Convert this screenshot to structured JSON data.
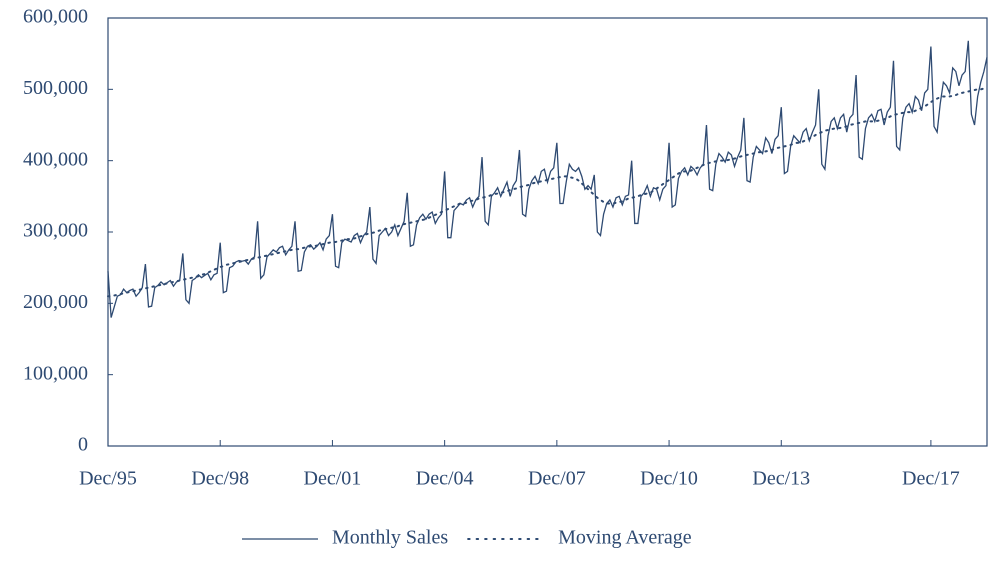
{
  "chart_data": {
    "type": "line",
    "x": [
      "1995-12",
      "1996-01",
      "1996-02",
      "1996-03",
      "1996-04",
      "1996-05",
      "1996-06",
      "1996-07",
      "1996-08",
      "1996-09",
      "1996-10",
      "1996-11",
      "1996-12",
      "1997-01",
      "1997-02",
      "1997-03",
      "1997-04",
      "1997-05",
      "1997-06",
      "1997-07",
      "1997-08",
      "1997-09",
      "1997-10",
      "1997-11",
      "1997-12",
      "1998-01",
      "1998-02",
      "1998-03",
      "1998-04",
      "1998-05",
      "1998-06",
      "1998-07",
      "1998-08",
      "1998-09",
      "1998-10",
      "1998-11",
      "1998-12",
      "1999-01",
      "1999-02",
      "1999-03",
      "1999-04",
      "1999-05",
      "1999-06",
      "1999-07",
      "1999-08",
      "1999-09",
      "1999-10",
      "1999-11",
      "1999-12",
      "2000-01",
      "2000-02",
      "2000-03",
      "2000-04",
      "2000-05",
      "2000-06",
      "2000-07",
      "2000-08",
      "2000-09",
      "2000-10",
      "2000-11",
      "2000-12",
      "2001-01",
      "2001-02",
      "2001-03",
      "2001-04",
      "2001-05",
      "2001-06",
      "2001-07",
      "2001-08",
      "2001-09",
      "2001-10",
      "2001-11",
      "2001-12",
      "2002-01",
      "2002-02",
      "2002-03",
      "2002-04",
      "2002-05",
      "2002-06",
      "2002-07",
      "2002-08",
      "2002-09",
      "2002-10",
      "2002-11",
      "2002-12",
      "2003-01",
      "2003-02",
      "2003-03",
      "2003-04",
      "2003-05",
      "2003-06",
      "2003-07",
      "2003-08",
      "2003-09",
      "2003-10",
      "2003-11",
      "2003-12",
      "2004-01",
      "2004-02",
      "2004-03",
      "2004-04",
      "2004-05",
      "2004-06",
      "2004-07",
      "2004-08",
      "2004-09",
      "2004-10",
      "2004-11",
      "2004-12",
      "2005-01",
      "2005-02",
      "2005-03",
      "2005-04",
      "2005-05",
      "2005-06",
      "2005-07",
      "2005-08",
      "2005-09",
      "2005-10",
      "2005-11",
      "2005-12",
      "2006-01",
      "2006-02",
      "2006-03",
      "2006-04",
      "2006-05",
      "2006-06",
      "2006-07",
      "2006-08",
      "2006-09",
      "2006-10",
      "2006-11",
      "2006-12",
      "2007-01",
      "2007-02",
      "2007-03",
      "2007-04",
      "2007-05",
      "2007-06",
      "2007-07",
      "2007-08",
      "2007-09",
      "2007-10",
      "2007-11",
      "2007-12",
      "2008-01",
      "2008-02",
      "2008-03",
      "2008-04",
      "2008-05",
      "2008-06",
      "2008-07",
      "2008-08",
      "2008-09",
      "2008-10",
      "2008-11",
      "2008-12",
      "2009-01",
      "2009-02",
      "2009-03",
      "2009-04",
      "2009-05",
      "2009-06",
      "2009-07",
      "2009-08",
      "2009-09",
      "2009-10",
      "2009-11",
      "2009-12",
      "2010-01",
      "2010-02",
      "2010-03",
      "2010-04",
      "2010-05",
      "2010-06",
      "2010-07",
      "2010-08",
      "2010-09",
      "2010-10",
      "2010-11",
      "2010-12",
      "2011-01",
      "2011-02",
      "2011-03",
      "2011-04",
      "2011-05",
      "2011-06",
      "2011-07",
      "2011-08",
      "2011-09",
      "2011-10",
      "2011-11",
      "2011-12",
      "2012-01",
      "2012-02",
      "2012-03",
      "2012-04",
      "2012-05",
      "2012-06",
      "2012-07",
      "2012-08",
      "2012-09",
      "2012-10",
      "2012-11",
      "2012-12",
      "2013-01",
      "2013-02",
      "2013-03",
      "2013-04",
      "2013-05",
      "2013-06",
      "2013-07",
      "2013-08",
      "2013-09",
      "2013-10",
      "2013-11",
      "2013-12",
      "2014-01",
      "2014-02",
      "2014-03",
      "2014-04",
      "2014-05",
      "2014-06",
      "2014-07",
      "2014-08",
      "2014-09",
      "2014-10",
      "2014-11",
      "2014-12",
      "2015-01",
      "2015-02",
      "2015-03",
      "2015-04",
      "2015-05",
      "2015-06",
      "2015-07",
      "2015-08",
      "2015-09",
      "2015-10",
      "2015-11",
      "2015-12",
      "2016-01",
      "2016-02",
      "2016-03",
      "2016-04",
      "2016-05",
      "2016-06",
      "2016-07",
      "2016-08",
      "2016-09",
      "2016-10",
      "2016-11",
      "2016-12",
      "2017-01",
      "2017-02",
      "2017-03",
      "2017-04",
      "2017-05",
      "2017-06",
      "2017-07",
      "2017-08",
      "2017-09",
      "2017-10",
      "2017-11",
      "2017-12",
      "2018-01",
      "2018-02",
      "2018-03",
      "2018-04",
      "2018-05",
      "2018-06",
      "2018-07",
      "2018-08",
      "2018-09",
      "2018-10",
      "2018-11",
      "2018-12",
      "2019-01",
      "2019-02",
      "2019-03",
      "2019-04",
      "2019-05",
      "2019-06"
    ],
    "series": [
      {
        "name": "Monthly Sales",
        "color": "#2e4a72",
        "style": "solid",
        "values": [
          245000,
          180000,
          195000,
          210000,
          212000,
          220000,
          215000,
          218000,
          220000,
          210000,
          215000,
          222000,
          255000,
          195000,
          196000,
          222000,
          225000,
          230000,
          226000,
          229000,
          232000,
          224000,
          230000,
          232000,
          270000,
          205000,
          200000,
          232000,
          235000,
          240000,
          236000,
          239000,
          242000,
          233000,
          240000,
          242000,
          285000,
          215000,
          217000,
          250000,
          252000,
          258000,
          260000,
          259000,
          260000,
          255000,
          262000,
          265000,
          315000,
          235000,
          240000,
          265000,
          270000,
          275000,
          272000,
          278000,
          280000,
          268000,
          275000,
          280000,
          315000,
          245000,
          246000,
          272000,
          280000,
          282000,
          276000,
          280000,
          285000,
          275000,
          290000,
          295000,
          325000,
          252000,
          250000,
          285000,
          290000,
          288000,
          286000,
          295000,
          298000,
          285000,
          295000,
          300000,
          335000,
          262000,
          256000,
          295000,
          300000,
          305000,
          295000,
          300000,
          310000,
          295000,
          305000,
          315000,
          355000,
          280000,
          282000,
          310000,
          320000,
          325000,
          318000,
          325000,
          328000,
          312000,
          320000,
          325000,
          385000,
          292000,
          292000,
          330000,
          335000,
          340000,
          338000,
          345000,
          348000,
          335000,
          345000,
          350000,
          405000,
          315000,
          310000,
          350000,
          355000,
          362000,
          350000,
          360000,
          370000,
          350000,
          365000,
          372000,
          415000,
          325000,
          322000,
          360000,
          372000,
          378000,
          368000,
          385000,
          388000,
          370000,
          385000,
          390000,
          425000,
          340000,
          340000,
          370000,
          395000,
          388000,
          385000,
          390000,
          378000,
          360000,
          365000,
          360000,
          380000,
          300000,
          295000,
          325000,
          340000,
          345000,
          335000,
          348000,
          350000,
          338000,
          350000,
          352000,
          400000,
          312000,
          312000,
          350000,
          355000,
          365000,
          350000,
          362000,
          360000,
          345000,
          360000,
          365000,
          425000,
          335000,
          338000,
          375000,
          385000,
          390000,
          380000,
          392000,
          388000,
          380000,
          390000,
          395000,
          450000,
          360000,
          358000,
          395000,
          410000,
          405000,
          398000,
          412000,
          408000,
          392000,
          405000,
          415000,
          460000,
          372000,
          370000,
          405000,
          420000,
          415000,
          410000,
          432000,
          425000,
          410000,
          430000,
          435000,
          475000,
          382000,
          385000,
          420000,
          435000,
          430000,
          425000,
          440000,
          445000,
          428000,
          440000,
          450000,
          500000,
          395000,
          388000,
          435000,
          455000,
          460000,
          445000,
          460000,
          465000,
          440000,
          460000,
          465000,
          520000,
          405000,
          402000,
          445000,
          460000,
          465000,
          455000,
          470000,
          472000,
          450000,
          468000,
          475000,
          540000,
          420000,
          415000,
          460000,
          475000,
          480000,
          468000,
          490000,
          485000,
          470000,
          495000,
          500000,
          560000,
          448000,
          440000,
          480000,
          510000,
          505000,
          495000,
          530000,
          525000,
          505000,
          520000,
          525000,
          568000,
          465000,
          450000,
          490000,
          510000,
          525000,
          545000
        ]
      },
      {
        "name": "Moving Average",
        "color": "#2e4a72",
        "style": "dotted",
        "values": [
          210000,
          210000,
          211000,
          212000,
          213000,
          214000,
          215000,
          216000,
          217000,
          218000,
          219000,
          220000,
          221000,
          222000,
          223000,
          224000,
          225000,
          226000,
          227000,
          228000,
          229000,
          230000,
          231000,
          232000,
          233000,
          234000,
          235000,
          236000,
          237000,
          238000,
          240000,
          241000,
          243000,
          245000,
          247000,
          249000,
          251000,
          252000,
          254000,
          255000,
          256000,
          257000,
          258000,
          259000,
          260000,
          261000,
          262000,
          263000,
          264000,
          265000,
          266000,
          267000,
          268000,
          269000,
          270000,
          271000,
          272000,
          273000,
          274000,
          275000,
          276000,
          276000,
          277000,
          278000,
          279000,
          280000,
          280000,
          281000,
          282000,
          283000,
          284000,
          285000,
          286000,
          286000,
          287000,
          288000,
          289000,
          290000,
          290000,
          291000,
          292000,
          294000,
          295000,
          297000,
          298000,
          299000,
          300000,
          302000,
          303000,
          304000,
          305000,
          306000,
          307000,
          308000,
          310000,
          311000,
          312000,
          313000,
          314000,
          315000,
          316000,
          317000,
          318000,
          320000,
          322000,
          324000,
          326000,
          328000,
          330000,
          332000,
          334000,
          336000,
          338000,
          340000,
          340000,
          341000,
          343000,
          344000,
          345000,
          347000,
          348000,
          349000,
          350000,
          352000,
          353000,
          354000,
          355000,
          356000,
          357000,
          359000,
          360000,
          361000,
          363000,
          364000,
          365000,
          366000,
          368000,
          369000,
          370000,
          371000,
          372000,
          373000,
          374000,
          375000,
          376000,
          377000,
          378000,
          378000,
          377000,
          376000,
          375000,
          372000,
          368000,
          364000,
          360000,
          356000,
          352000,
          348000,
          345000,
          342000,
          340000,
          340000,
          340000,
          341000,
          342000,
          343000,
          345000,
          347000,
          348000,
          349000,
          350000,
          352000,
          353000,
          354000,
          355000,
          358000,
          361000,
          364000,
          367000,
          370000,
          373000,
          376000,
          379000,
          382000,
          384000,
          385000,
          385000,
          386000,
          388000,
          390000,
          392000,
          394000,
          396000,
          397000,
          398000,
          399000,
          400000,
          400000,
          400000,
          401000,
          402000,
          403000,
          404000,
          406000,
          407000,
          408000,
          409000,
          410000,
          411000,
          412000,
          412000,
          413000,
          414000,
          415000,
          417000,
          418000,
          419000,
          420000,
          421000,
          422000,
          424000,
          425000,
          425000,
          427000,
          429000,
          431000,
          433000,
          436000,
          438000,
          440000,
          442000,
          443000,
          444000,
          445000,
          445000,
          446000,
          447000,
          448000,
          450000,
          451000,
          452000,
          453000,
          454000,
          455000,
          455000,
          455000,
          455000,
          456000,
          457000,
          458000,
          460000,
          462000,
          464000,
          465000,
          466000,
          467000,
          468000,
          468000,
          468000,
          470000,
          472000,
          474000,
          476000,
          479000,
          482000,
          485000,
          487000,
          489000,
          490000,
          490000,
          490000,
          491000,
          492000,
          494000,
          495000,
          496000,
          497000,
          498000,
          499000,
          500000,
          500000,
          501000,
          502000
        ]
      }
    ],
    "xlim": [
      "1995-12",
      "2019-06"
    ],
    "xticks": [
      {
        "value": "1995-12",
        "label": "Dec/95"
      },
      {
        "value": "1998-12",
        "label": "Dec/98"
      },
      {
        "value": "2001-12",
        "label": "Dec/01"
      },
      {
        "value": "2004-12",
        "label": "Dec/04"
      },
      {
        "value": "2007-12",
        "label": "Dec/07"
      },
      {
        "value": "2010-12",
        "label": "Dec/10"
      },
      {
        "value": "2013-12",
        "label": "Dec/13"
      },
      {
        "value": "2017-12",
        "label": "Dec/17"
      }
    ],
    "ylim": [
      0,
      600000
    ],
    "yticks": [
      0,
      {
        "value": 100000,
        "label": "100,000"
      },
      {
        "value": 200000,
        "label": "200,000"
      },
      {
        "value": 300000,
        "label": "300,000"
      },
      {
        "value": 400000,
        "label": "400,000"
      },
      {
        "value": 500000,
        "label": "500,000"
      },
      {
        "value": 600000,
        "label": "600,000"
      }
    ],
    "legend": "bottom"
  }
}
